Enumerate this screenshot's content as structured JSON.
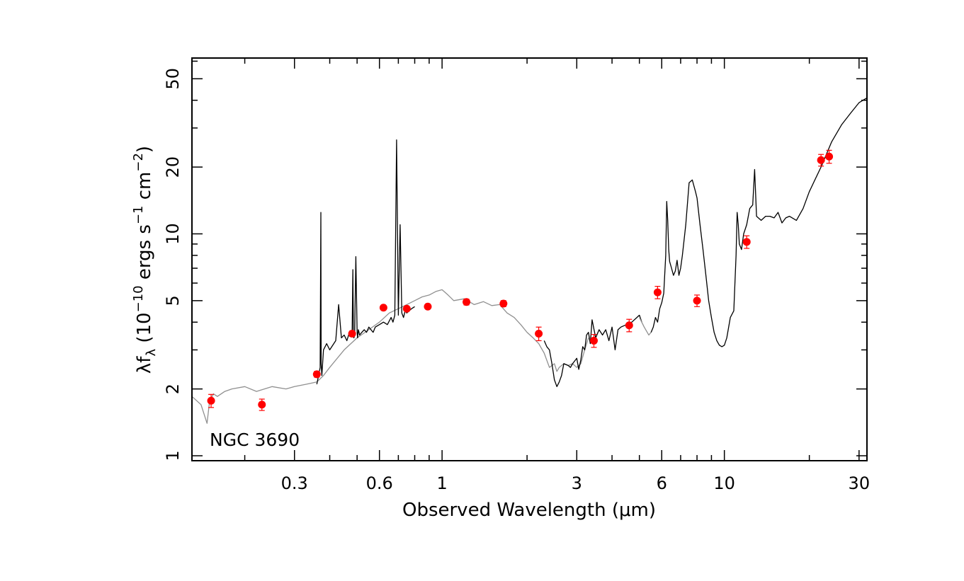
{
  "chart_data": {
    "type": "line",
    "xlabel": "Observed Wavelength (μm)",
    "ylabel": {
      "prefix": "λf",
      "sub": "λ",
      "open": " (10",
      "exp1": "−10",
      "mid1": " ergs s",
      "exp2": "−1",
      "mid2": " cm",
      "exp3": "−2",
      "close": ")"
    },
    "annotation": "NGC 3690",
    "x_scale": "log",
    "y_scale": "log",
    "xlim": [
      0.13,
      32
    ],
    "ylim": [
      0.95,
      62
    ],
    "x_major_ticks": [
      0.3,
      0.6,
      1,
      3,
      6,
      10,
      30
    ],
    "x_tick_labels": [
      "0.3",
      "0.6",
      "1",
      "3",
      "6",
      "10",
      "30"
    ],
    "y_major_ticks": [
      1,
      2,
      5,
      10,
      20,
      50
    ],
    "y_tick_labels": [
      "1",
      "2",
      "5",
      "10",
      "20",
      "50"
    ],
    "grid": false,
    "colors": {
      "template": "#909090",
      "spectrum": "#000000",
      "photometry": "#ff0000",
      "errorbar": "#ff0000"
    },
    "series": [
      {
        "style": "gray-line",
        "x": [
          0.13,
          0.14,
          0.147,
          0.15,
          0.155,
          0.16,
          0.17,
          0.18,
          0.2,
          0.22,
          0.25,
          0.28,
          0.3,
          0.33,
          0.36,
          0.38,
          0.4,
          0.45,
          0.5,
          0.55,
          0.6,
          0.65,
          0.7,
          0.75,
          0.8,
          0.85,
          0.9,
          0.95,
          1.0,
          1.05,
          1.1,
          1.2,
          1.3,
          1.4,
          1.5,
          1.6,
          1.7,
          1.8,
          1.9,
          2.0,
          2.1,
          2.2,
          2.3,
          2.4,
          2.5,
          2.55,
          2.6,
          2.7,
          2.8,
          2.9,
          3.0,
          3.1,
          3.2,
          3.3
        ],
        "y": [
          1.85,
          1.7,
          1.4,
          1.75,
          1.9,
          1.85,
          1.95,
          2.0,
          2.05,
          1.95,
          2.05,
          2.0,
          2.05,
          2.1,
          2.15,
          2.3,
          2.5,
          3.0,
          3.4,
          3.7,
          4.0,
          4.4,
          4.6,
          4.8,
          5.0,
          5.2,
          5.3,
          5.5,
          5.6,
          5.3,
          5.0,
          5.1,
          4.8,
          4.95,
          4.75,
          4.8,
          4.4,
          4.2,
          3.9,
          3.6,
          3.4,
          3.2,
          2.9,
          2.5,
          2.6,
          2.4,
          2.5,
          2.6,
          2.55,
          2.6,
          2.5,
          2.6,
          3.0,
          3.4
        ]
      },
      {
        "style": "black-line",
        "x": [
          0.36,
          0.37,
          0.372,
          0.373,
          0.375,
          0.38,
          0.39,
          0.4,
          0.42,
          0.43,
          0.44,
          0.45,
          0.46,
          0.47,
          0.48,
          0.483,
          0.485,
          0.487,
          0.49,
          0.495,
          0.5,
          0.502,
          0.505,
          0.508,
          0.51,
          0.52,
          0.53,
          0.54,
          0.55,
          0.56,
          0.57,
          0.58,
          0.6,
          0.62,
          0.64,
          0.66,
          0.67,
          0.68,
          0.69,
          0.7,
          0.71,
          0.72,
          0.73,
          0.74,
          0.75,
          0.78,
          0.8
        ],
        "y": [
          2.1,
          2.5,
          12.5,
          2.6,
          2.3,
          3.0,
          3.2,
          3.0,
          3.3,
          4.8,
          3.4,
          3.5,
          3.3,
          3.6,
          3.5,
          6.9,
          3.6,
          3.4,
          3.5,
          7.9,
          3.6,
          3.4,
          3.7,
          3.6,
          3.5,
          3.6,
          3.7,
          3.6,
          3.8,
          3.7,
          3.6,
          3.8,
          3.9,
          4.0,
          3.9,
          4.2,
          4.0,
          4.3,
          26.5,
          4.3,
          11.0,
          4.4,
          4.2,
          4.5,
          4.4,
          4.6,
          4.7
        ]
      },
      {
        "style": "black-line",
        "x": [
          2.3,
          2.35,
          2.4,
          2.45,
          2.5,
          2.55,
          2.6,
          2.65,
          2.7,
          2.8,
          2.85,
          2.9,
          3.0,
          3.05,
          3.1,
          3.15,
          3.2,
          3.25,
          3.3,
          3.35,
          3.4,
          3.5,
          3.6,
          3.7,
          3.8,
          3.9,
          4.0,
          4.1,
          4.2,
          4.3,
          4.5,
          4.7,
          4.9,
          5.0,
          5.1
        ],
        "y": [
          3.3,
          3.1,
          3.0,
          2.6,
          2.2,
          2.05,
          2.15,
          2.3,
          2.6,
          2.55,
          2.5,
          2.6,
          2.75,
          2.45,
          2.7,
          3.1,
          3.0,
          3.5,
          3.6,
          3.2,
          4.1,
          3.4,
          3.7,
          3.5,
          3.7,
          3.3,
          3.8,
          3.0,
          3.7,
          3.8,
          3.9,
          4.0,
          4.2,
          4.3,
          4.0
        ]
      },
      {
        "style": "gray-line",
        "x": [
          5.0,
          5.2,
          5.4,
          5.5
        ],
        "y": [
          4.2,
          3.8,
          3.5,
          3.6
        ]
      },
      {
        "style": "black-line",
        "x": [
          5.5,
          5.6,
          5.7,
          5.8,
          5.9,
          6.0,
          6.1,
          6.2,
          6.25,
          6.3,
          6.35,
          6.4,
          6.5,
          6.6,
          6.7,
          6.8,
          6.9,
          7.0,
          7.1,
          7.3,
          7.5,
          7.7,
          7.9,
          8.0,
          8.2,
          8.4,
          8.6,
          8.8,
          9.0,
          9.2,
          9.4,
          9.6,
          9.8,
          10.0,
          10.2,
          10.5,
          10.8,
          11.0,
          11.1,
          11.2,
          11.3,
          11.5,
          11.7,
          12.0,
          12.3,
          12.6,
          12.8,
          13.0,
          13.5,
          14.0,
          14.5,
          15.0,
          15.5,
          16.0,
          16.5,
          17.0,
          18.0,
          19.0,
          20.0,
          22.0,
          24.0,
          26.0,
          28.0,
          30.0,
          32.0
        ],
        "y": [
          3.6,
          3.8,
          4.2,
          4.0,
          4.6,
          4.9,
          5.4,
          8.0,
          14.0,
          11.5,
          8.5,
          7.5,
          7.0,
          6.5,
          6.8,
          7.6,
          6.5,
          7.0,
          8.0,
          11.0,
          17.0,
          17.5,
          15.5,
          14.5,
          11.0,
          8.5,
          6.5,
          5.0,
          4.2,
          3.6,
          3.3,
          3.15,
          3.1,
          3.15,
          3.4,
          4.2,
          4.5,
          8.0,
          12.5,
          11.0,
          9.0,
          8.5,
          10.0,
          11.0,
          13.0,
          13.5,
          19.5,
          12.0,
          11.5,
          12.0,
          12.0,
          11.8,
          12.5,
          11.2,
          11.8,
          12.0,
          11.5,
          13.0,
          15.5,
          20.0,
          26.0,
          31.0,
          35.0,
          39.0,
          41.0
        ]
      },
      {
        "style": "photometry",
        "x": [
          0.152,
          0.23,
          0.36,
          0.48,
          0.62,
          0.75,
          0.89,
          1.22,
          1.65,
          2.2,
          3.45,
          4.6,
          5.8,
          8.0,
          12.0,
          22.0,
          23.5
        ],
        "y": [
          1.77,
          1.7,
          2.33,
          3.55,
          4.65,
          4.6,
          4.7,
          4.93,
          4.85,
          3.55,
          3.3,
          3.87,
          5.45,
          5.0,
          9.2,
          21.5,
          22.3
        ],
        "err_lo": [
          0.12,
          0.1,
          0.07,
          0.1,
          0.1,
          0.1,
          0.1,
          0.15,
          0.15,
          0.25,
          0.22,
          0.25,
          0.35,
          0.3,
          0.6,
          1.3,
          1.5
        ],
        "err_hi": [
          0.12,
          0.1,
          0.07,
          0.1,
          0.1,
          0.1,
          0.1,
          0.15,
          0.15,
          0.25,
          0.22,
          0.25,
          0.35,
          0.3,
          0.6,
          1.3,
          1.5
        ]
      }
    ]
  }
}
